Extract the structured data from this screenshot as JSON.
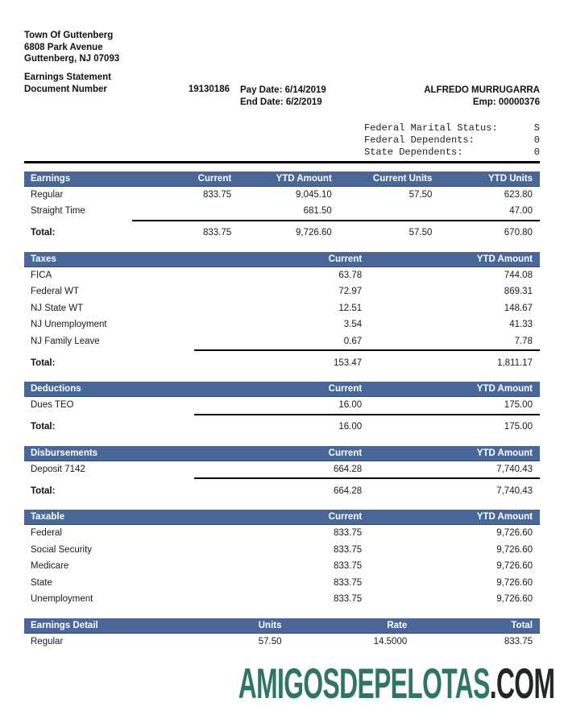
{
  "header": {
    "employer_name": "Town Of Guttenberg",
    "employer_address_line1": "6808 Park Avenue",
    "employer_address_line2": "Guttenberg, NJ 07093",
    "statement_title": "Earnings Statement",
    "document_number_label": "Document Number",
    "document_number": "19130186",
    "pay_date_label": "Pay Date:",
    "pay_date": "6/14/2019",
    "end_date_label": "End Date:",
    "end_date": "6/2/2019",
    "employee_name": "ALFREDO MURRUGARRA",
    "employee_number_label": "Emp:",
    "employee_number": "00000376"
  },
  "tax_status": {
    "lines": [
      {
        "label": "Federal Marital Status:",
        "value": "S"
      },
      {
        "label": "Federal Dependents:",
        "value": "0"
      },
      {
        "label": "State Dependents:",
        "value": "0"
      }
    ]
  },
  "tables": {
    "earnings": {
      "headers": [
        "Earnings",
        "Current",
        "YTD Amount",
        "Current Units",
        "YTD Units"
      ],
      "rows": [
        {
          "label": "Regular",
          "values": [
            "833.75",
            "9,045.10",
            "57.50",
            "623.80"
          ]
        },
        {
          "label": "Straight Time",
          "values": [
            "",
            "681.50",
            "",
            "47.00"
          ]
        }
      ],
      "total": {
        "label": "Total:",
        "values": [
          "833.75",
          "9,726.60",
          "57.50",
          "670.80"
        ]
      }
    },
    "taxes": {
      "headers": [
        "Taxes",
        "Current",
        "YTD Amount"
      ],
      "rows": [
        {
          "label": "FICA",
          "values": [
            "63.78",
            "744.08"
          ]
        },
        {
          "label": "Federal WT",
          "values": [
            "72.97",
            "869.31"
          ]
        },
        {
          "label": "NJ State WT",
          "values": [
            "12.51",
            "148.67"
          ]
        },
        {
          "label": "NJ Unemployment",
          "values": [
            "3.54",
            "41.33"
          ]
        },
        {
          "label": "NJ Family Leave",
          "values": [
            "0.67",
            "7.78"
          ]
        }
      ],
      "total": {
        "label": "Total:",
        "values": [
          "153.47",
          "1,811.17"
        ]
      }
    },
    "deductions": {
      "headers": [
        "Deductions",
        "Current",
        "YTD Amount"
      ],
      "rows": [
        {
          "label": "Dues TEO",
          "values": [
            "16.00",
            "175.00"
          ]
        }
      ],
      "total": {
        "label": "Total:",
        "values": [
          "16.00",
          "175.00"
        ]
      }
    },
    "disbursements": {
      "headers": [
        "Disbursements",
        "Current",
        "YTD Amount"
      ],
      "rows": [
        {
          "label": "Deposit 7142",
          "values": [
            "664.28",
            "7,740.43"
          ]
        }
      ],
      "total": {
        "label": "Total:",
        "values": [
          "664.28",
          "7,740.43"
        ]
      }
    },
    "taxable": {
      "headers": [
        "Taxable",
        "Current",
        "YTD Amount"
      ],
      "rows": [
        {
          "label": "Federal",
          "values": [
            "833.75",
            "9,726.60"
          ]
        },
        {
          "label": "Social Security",
          "values": [
            "833.75",
            "9,726.60"
          ]
        },
        {
          "label": "Medicare",
          "values": [
            "833.75",
            "9,726.60"
          ]
        },
        {
          "label": "State",
          "values": [
            "833.75",
            "9,726.60"
          ]
        },
        {
          "label": "Unemployment",
          "values": [
            "833.75",
            "9,726.60"
          ]
        }
      ]
    },
    "earnings_detail": {
      "headers": [
        "Earnings Detail",
        "Units",
        "Rate",
        "Total"
      ],
      "rows": [
        {
          "label": "Regular",
          "values": [
            "57.50",
            "14.5000",
            "833.75"
          ]
        }
      ]
    }
  },
  "colors": {
    "table_header_bg": "#4a679a",
    "table_header_text": "#ffffff",
    "watermark_brand_color": "#2f7564",
    "watermark_tld_color": "#212626"
  },
  "watermark": {
    "brand": "AMIGOSDEPELOTAS",
    "tld": ".COM"
  }
}
